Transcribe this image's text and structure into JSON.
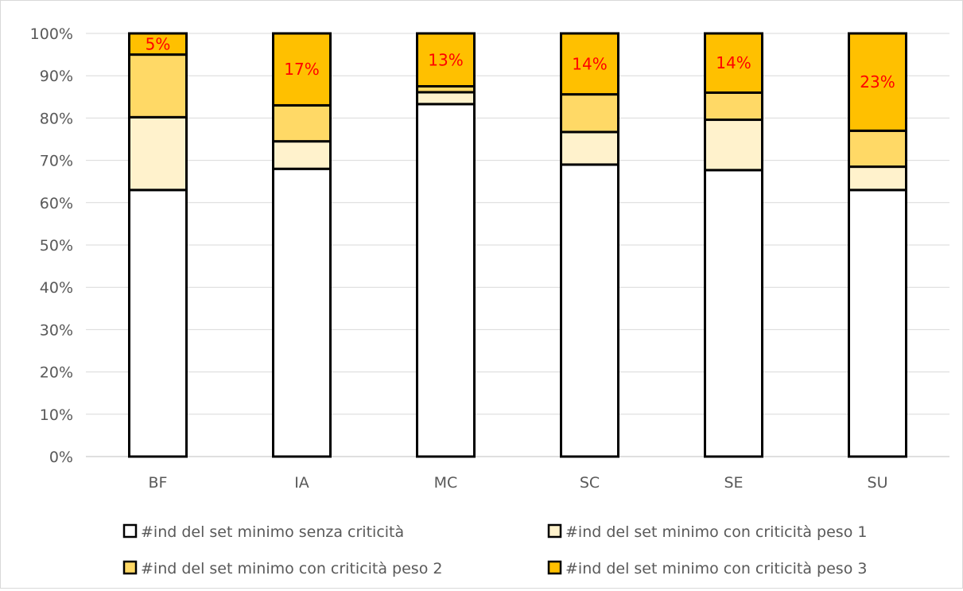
{
  "chart_data": {
    "type": "bar",
    "stacked": true,
    "normalized": true,
    "categories": [
      "BF",
      "IA",
      "MC",
      "SC",
      "SE",
      "SU"
    ],
    "series": [
      {
        "name": "#ind del set minimo senza criticità",
        "color": "#ffffff",
        "values": [
          63,
          68,
          83.3,
          69,
          67.7,
          63
        ]
      },
      {
        "name": "#ind del set minimo con  criticità peso 1",
        "color": "#fff2cc",
        "values": [
          17.2,
          6.5,
          2.8,
          7.7,
          11.9,
          5.5
        ]
      },
      {
        "name": "#ind del set minimo con  criticità peso 2",
        "color": "#ffd966",
        "values": [
          14.8,
          8.5,
          1.4,
          8.9,
          6.4,
          8.5
        ]
      },
      {
        "name": "#ind del set minimo con  criticità peso 3",
        "color": "#ffc000",
        "values": [
          5,
          17,
          12.5,
          14.4,
          14,
          23
        ]
      }
    ],
    "data_labels": [
      "5%",
      "17%",
      "13%",
      "14%",
      "14%",
      "23%"
    ],
    "y_ticks": [
      "0%",
      "10%",
      "20%",
      "30%",
      "40%",
      "50%",
      "60%",
      "70%",
      "80%",
      "90%",
      "100%"
    ],
    "ylim": [
      0,
      100
    ],
    "grid": true,
    "legend_position": "bottom",
    "title": "",
    "xlabel": "",
    "ylabel": ""
  }
}
